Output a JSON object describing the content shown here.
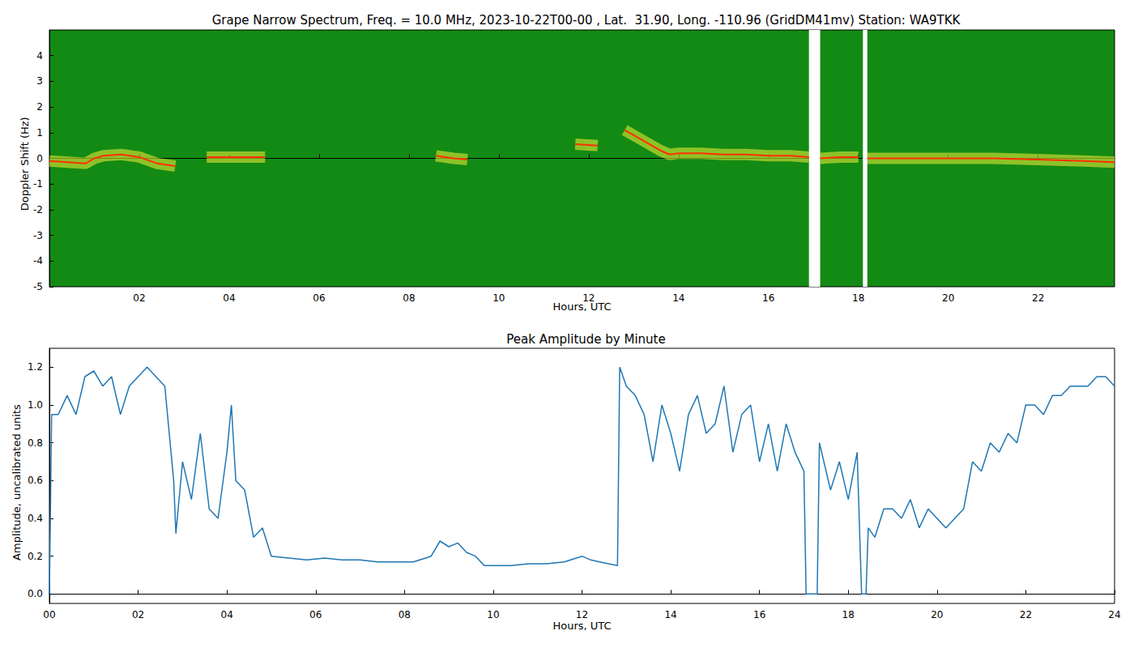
{
  "chart_data": [
    {
      "type": "line",
      "title": "Grape Narrow Spectrum, Freq. = 10.0 MHz, 2023-10-22T00-00 , Lat.  31.90, Long. -110.96 (GridDM41mv) Station: WA9TKK",
      "xlabel": "Hours, UTC",
      "ylabel": "Doppler Shift (Hz)",
      "xlim": [
        0,
        23.7
      ],
      "xticks": [
        {
          "value": 2,
          "label": "02"
        },
        {
          "value": 4,
          "label": "04"
        },
        {
          "value": 6,
          "label": "06"
        },
        {
          "value": 8,
          "label": "08"
        },
        10,
        12,
        14,
        16,
        18,
        20,
        22
      ],
      "ylim": [
        -5,
        5
      ],
      "yticks": [
        -5,
        -4,
        -3,
        -2,
        -1,
        0,
        1,
        2,
        3,
        4
      ],
      "x": [
        0,
        0.4,
        0.8,
        1.0,
        1.2,
        1.6,
        2.0,
        2.4,
        2.8,
        3.0,
        3.5,
        4.0,
        4.5,
        4.8,
        5.0,
        8.6,
        9.0,
        9.3,
        9.5,
        11.7,
        12.2,
        12.5,
        12.8,
        13.0,
        13.3,
        13.6,
        13.8,
        14.0,
        14.5,
        15.0,
        15.5,
        16.0,
        16.5,
        16.9,
        17.0,
        17.15,
        17.6,
        18.0,
        18.1,
        18.2,
        18.6,
        19.0,
        20.0,
        21.0,
        22.0,
        23.0,
        23.7
      ],
      "series": [
        {
          "color": "#ff3000",
          "values": [
            -0.1,
            -0.15,
            -0.2,
            0.0,
            0.1,
            0.15,
            0.05,
            -0.2,
            -0.3,
            null,
            0.05,
            0.05,
            0.05,
            0.05,
            null,
            0.1,
            0.0,
            -0.05,
            null,
            0.55,
            0.5,
            null,
            1.1,
            0.9,
            0.6,
            0.3,
            0.15,
            0.2,
            0.2,
            0.15,
            0.15,
            0.1,
            0.1,
            0.05,
            null,
            0.0,
            0.05,
            0.05,
            null,
            0.0,
            0.0,
            0.0,
            0.0,
            0.0,
            -0.05,
            -0.1,
            -0.15
          ]
        }
      ],
      "gaps": [
        [
          16.9,
          17.15
        ],
        [
          18.1,
          18.2
        ]
      ],
      "color": "#138a13",
      "grid": false
    },
    {
      "type": "line",
      "title": "Peak Amplitude by Minute",
      "xlabel": "Hours, UTC",
      "ylabel": "Amplitude, uncalibrated units",
      "xlim": [
        0,
        24
      ],
      "xticks": [
        {
          "value": 0,
          "label": "00"
        },
        {
          "value": 2,
          "label": "02"
        },
        {
          "value": 4,
          "label": "04"
        },
        {
          "value": 6,
          "label": "06"
        },
        {
          "value": 8,
          "label": "08"
        },
        10,
        12,
        14,
        16,
        18,
        20,
        22,
        24
      ],
      "ylim": [
        -0.05,
        1.3
      ],
      "yticks": [
        {
          "value": 0,
          "label": "0.0"
        },
        0.2,
        0.4,
        0.6,
        0.8,
        {
          "value": 1,
          "label": "1.0"
        },
        1.2
      ],
      "x": [
        0,
        0.05,
        0.2,
        0.4,
        0.6,
        0.8,
        1.0,
        1.2,
        1.4,
        1.6,
        1.8,
        2.0,
        2.2,
        2.4,
        2.6,
        2.8,
        2.85,
        3.0,
        3.2,
        3.4,
        3.6,
        3.8,
        4.0,
        4.1,
        4.2,
        4.4,
        4.6,
        4.8,
        5.0,
        5.4,
        5.8,
        6.2,
        6.6,
        7.0,
        7.4,
        7.8,
        8.2,
        8.6,
        8.8,
        9.0,
        9.2,
        9.4,
        9.6,
        9.8,
        10.0,
        10.4,
        10.8,
        11.2,
        11.6,
        12.0,
        12.2,
        12.4,
        12.8,
        12.85,
        13.0,
        13.2,
        13.4,
        13.6,
        13.8,
        14.0,
        14.2,
        14.4,
        14.6,
        14.8,
        15.0,
        15.2,
        15.4,
        15.6,
        15.8,
        16.0,
        16.2,
        16.4,
        16.6,
        16.8,
        17.0,
        17.05,
        17.3,
        17.35,
        17.6,
        17.8,
        18.0,
        18.2,
        18.3,
        18.4,
        18.45,
        18.6,
        18.8,
        19.0,
        19.2,
        19.4,
        19.6,
        19.8,
        20.0,
        20.2,
        20.4,
        20.6,
        20.8,
        21.0,
        21.2,
        21.4,
        21.6,
        21.8,
        22.0,
        22.2,
        22.4,
        22.6,
        22.8,
        23.0,
        23.2,
        23.4,
        23.6,
        23.8,
        24.0
      ],
      "series": [
        {
          "color": "#1f77b4",
          "values": [
            0.0,
            0.95,
            0.95,
            1.05,
            0.95,
            1.15,
            1.18,
            1.1,
            1.15,
            0.95,
            1.1,
            1.15,
            1.2,
            1.15,
            1.1,
            0.6,
            0.32,
            0.7,
            0.5,
            0.85,
            0.45,
            0.4,
            0.75,
            1.0,
            0.6,
            0.55,
            0.3,
            0.35,
            0.2,
            0.19,
            0.18,
            0.19,
            0.18,
            0.18,
            0.17,
            0.17,
            0.17,
            0.2,
            0.28,
            0.25,
            0.27,
            0.22,
            0.2,
            0.15,
            0.15,
            0.15,
            0.16,
            0.16,
            0.17,
            0.2,
            0.18,
            0.17,
            0.15,
            1.2,
            1.1,
            1.05,
            0.95,
            0.7,
            1.0,
            0.85,
            0.65,
            0.95,
            1.05,
            0.85,
            0.9,
            1.1,
            0.75,
            0.95,
            1.0,
            0.7,
            0.9,
            0.65,
            0.9,
            0.75,
            0.65,
            0.0,
            0.0,
            0.8,
            0.55,
            0.7,
            0.5,
            0.75,
            0.0,
            0.0,
            0.35,
            0.3,
            0.45,
            0.45,
            0.4,
            0.5,
            0.35,
            0.45,
            0.4,
            0.35,
            0.4,
            0.45,
            0.7,
            0.65,
            0.8,
            0.75,
            0.85,
            0.8,
            1.0,
            1.0,
            0.95,
            1.05,
            1.05,
            1.1,
            1.1,
            1.1,
            1.15,
            1.15,
            1.1
          ]
        }
      ],
      "grid": false
    }
  ]
}
